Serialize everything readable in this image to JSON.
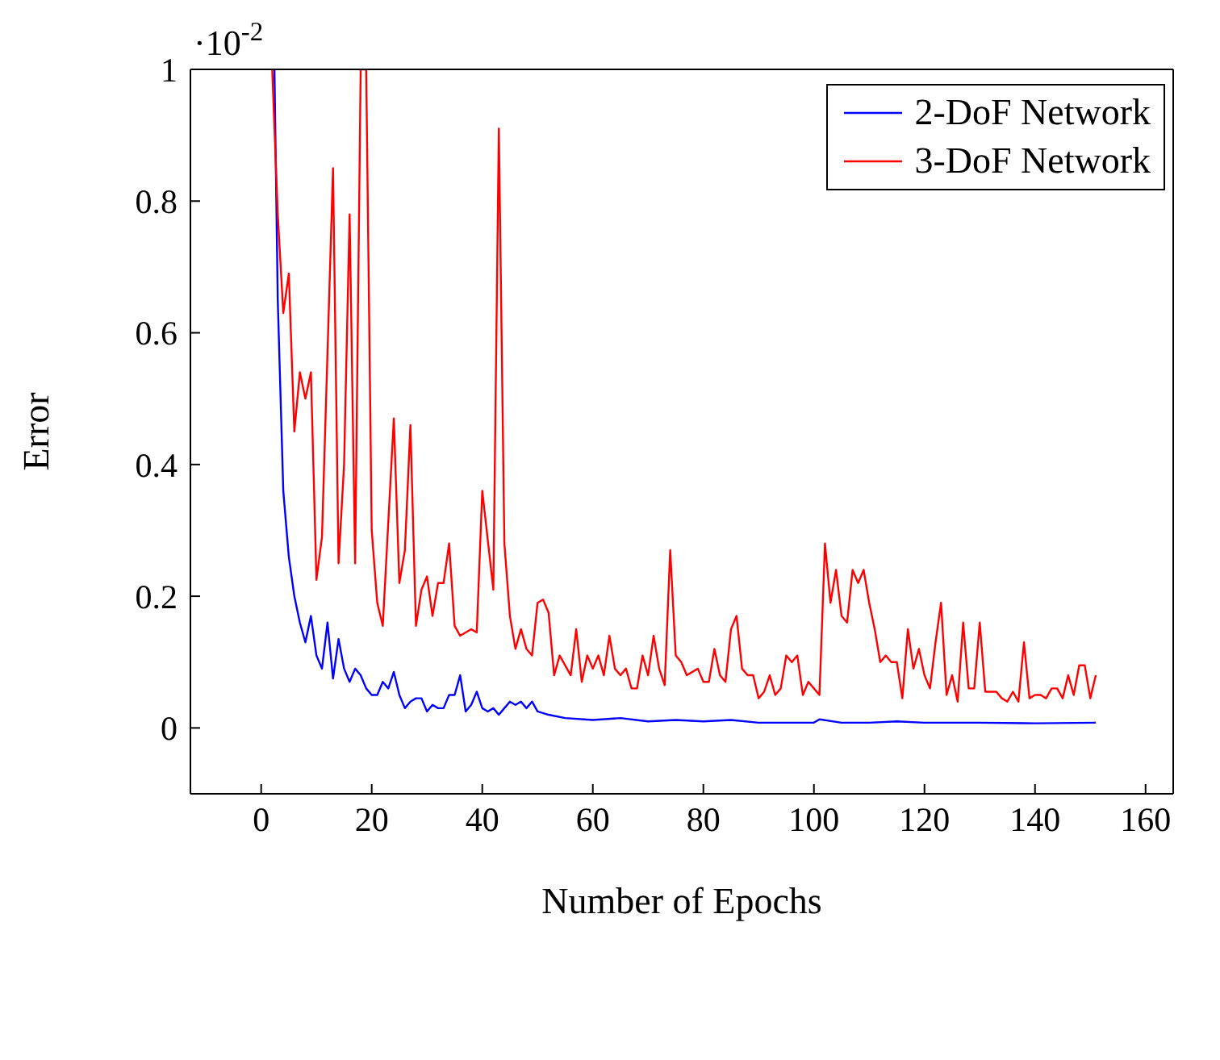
{
  "chart_data": {
    "type": "line",
    "xlabel": "Number of Epochs",
    "ylabel": "Error",
    "annotations": [
      "·10$^{-2}$"
    ],
    "xlim": [
      -12.8,
      165
    ],
    "xticks": [
      0,
      20,
      40,
      60,
      80,
      100,
      120,
      140,
      160
    ],
    "ylim": [
      -0.1,
      1
    ],
    "yticks": [
      0,
      0.2,
      0.4,
      0.6,
      0.8,
      1
    ],
    "legend": "top right",
    "marker": "none",
    "line_style": "solid",
    "series": [
      {
        "name": "2-DoF Network",
        "color": "#0000ff",
        "x": [
          2.4,
          3,
          4,
          5,
          6,
          7,
          8,
          9,
          10,
          11,
          12,
          13,
          14,
          15,
          16,
          17,
          18,
          19,
          20,
          21,
          22,
          23,
          24,
          25,
          26,
          27,
          28,
          29,
          30,
          31,
          32,
          33,
          34,
          35,
          36,
          37,
          38,
          39,
          40,
          41,
          42,
          43,
          44,
          45,
          46,
          47,
          48,
          49,
          50,
          52,
          55,
          60,
          65,
          70,
          75,
          80,
          85,
          90,
          100,
          101,
          105,
          110,
          115,
          120,
          130,
          140,
          151
        ],
        "values": [
          1.0,
          0.65,
          0.36,
          0.26,
          0.2,
          0.16,
          0.13,
          0.17,
          0.11,
          0.09,
          0.16,
          0.075,
          0.135,
          0.09,
          0.07,
          0.09,
          0.08,
          0.06,
          0.05,
          0.05,
          0.07,
          0.06,
          0.085,
          0.05,
          0.03,
          0.04,
          0.045,
          0.045,
          0.025,
          0.035,
          0.03,
          0.03,
          0.05,
          0.05,
          0.08,
          0.025,
          0.035,
          0.055,
          0.03,
          0.025,
          0.03,
          0.02,
          0.03,
          0.04,
          0.035,
          0.04,
          0.03,
          0.04,
          0.025,
          0.02,
          0.015,
          0.012,
          0.015,
          0.01,
          0.012,
          0.01,
          0.012,
          0.008,
          0.008,
          0.013,
          0.008,
          0.008,
          0.01,
          0.008,
          0.008,
          0.007,
          0.008
        ]
      },
      {
        "name": "3-DoF Network",
        "color": "#ff0000",
        "x": [
          2,
          3,
          4,
          5,
          6,
          7,
          8,
          9,
          10,
          11,
          13,
          14,
          15,
          16,
          17,
          18,
          19,
          20,
          21,
          22,
          24,
          25,
          26,
          27,
          28,
          29,
          30,
          31,
          32,
          33,
          34,
          35,
          36,
          38,
          39,
          40,
          42,
          43,
          44,
          45,
          46,
          47,
          48,
          49,
          50,
          51,
          52,
          53,
          54,
          56,
          57,
          58,
          59,
          60,
          61,
          62,
          63,
          64,
          65,
          66,
          67,
          68,
          69,
          70,
          71,
          72,
          73,
          74,
          75,
          76,
          77,
          79,
          80,
          81,
          82,
          83,
          84,
          85,
          86,
          87,
          88,
          89,
          90,
          91,
          92,
          93,
          94,
          95,
          96,
          97,
          98,
          99,
          100,
          101,
          102,
          103,
          104,
          105,
          106,
          107,
          108,
          109,
          110,
          111,
          112,
          113,
          114,
          115,
          116,
          117,
          118,
          119,
          120,
          121,
          122,
          123,
          124,
          125,
          126,
          127,
          128,
          129,
          130,
          131,
          132,
          133,
          134,
          135,
          136,
          137,
          138,
          139,
          140,
          141,
          142,
          143,
          144,
          145,
          146,
          147,
          148,
          149,
          150,
          151
        ],
        "values": [
          1.0,
          0.78,
          0.63,
          0.69,
          0.45,
          0.54,
          0.5,
          0.54,
          0.225,
          0.29,
          0.85,
          0.25,
          0.4,
          0.78,
          0.25,
          1.0,
          1.0,
          0.3,
          0.19,
          0.155,
          0.47,
          0.22,
          0.27,
          0.46,
          0.155,
          0.21,
          0.23,
          0.17,
          0.22,
          0.22,
          0.28,
          0.155,
          0.14,
          0.15,
          0.145,
          0.36,
          0.21,
          0.91,
          0.28,
          0.17,
          0.12,
          0.15,
          0.12,
          0.11,
          0.19,
          0.195,
          0.175,
          0.08,
          0.11,
          0.08,
          0.15,
          0.07,
          0.11,
          0.09,
          0.11,
          0.08,
          0.14,
          0.09,
          0.08,
          0.09,
          0.06,
          0.06,
          0.11,
          0.08,
          0.14,
          0.09,
          0.065,
          0.27,
          0.11,
          0.1,
          0.08,
          0.09,
          0.07,
          0.07,
          0.12,
          0.08,
          0.07,
          0.15,
          0.17,
          0.09,
          0.08,
          0.08,
          0.045,
          0.055,
          0.08,
          0.05,
          0.06,
          0.11,
          0.1,
          0.11,
          0.05,
          0.07,
          0.06,
          0.05,
          0.28,
          0.19,
          0.24,
          0.17,
          0.16,
          0.24,
          0.22,
          0.24,
          0.19,
          0.15,
          0.1,
          0.11,
          0.1,
          0.1,
          0.045,
          0.15,
          0.09,
          0.12,
          0.08,
          0.06,
          0.13,
          0.19,
          0.05,
          0.08,
          0.04,
          0.16,
          0.06,
          0.06,
          0.16,
          0.055,
          0.055,
          0.055,
          0.045,
          0.04,
          0.055,
          0.04,
          0.13,
          0.045,
          0.05,
          0.05,
          0.045,
          0.06,
          0.06,
          0.045,
          0.08,
          0.05,
          0.095,
          0.095,
          0.045,
          0.08
        ]
      }
    ]
  }
}
